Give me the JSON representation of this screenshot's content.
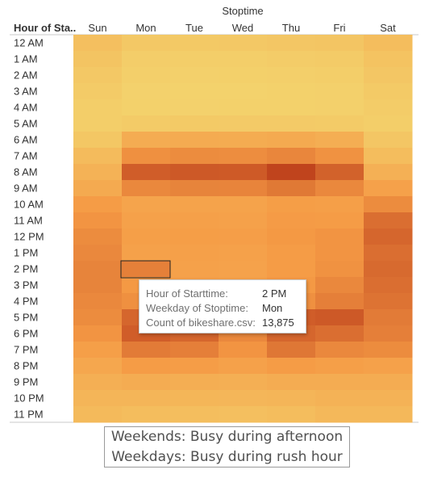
{
  "chart_data": {
    "type": "heatmap",
    "column_title": "Stoptime",
    "row_header": "Hour of Sta..",
    "columns": [
      "Sun",
      "Mon",
      "Tue",
      "Wed",
      "Thu",
      "Fri",
      "Sat"
    ],
    "rows": [
      "12 AM",
      "1 AM",
      "2 AM",
      "3 AM",
      "4 AM",
      "5 AM",
      "6 AM",
      "7 AM",
      "8 AM",
      "9 AM",
      "10 AM",
      "11 AM",
      "12 PM",
      "1 PM",
      "2 PM",
      "3 PM",
      "4 PM",
      "5 PM",
      "6 PM",
      "7 PM",
      "8 PM",
      "9 PM",
      "10 PM",
      "11 PM"
    ],
    "values": [
      [
        4200,
        2600,
        2400,
        2500,
        2800,
        3000,
        4500
      ],
      [
        3200,
        1600,
        1400,
        1500,
        1700,
        1900,
        3500
      ],
      [
        2600,
        1200,
        1000,
        1100,
        1300,
        1400,
        2900
      ],
      [
        1900,
        800,
        700,
        750,
        900,
        1000,
        2200
      ],
      [
        1500,
        900,
        800,
        850,
        950,
        1000,
        1700
      ],
      [
        1400,
        2000,
        2200,
        2100,
        2100,
        2000,
        1500
      ],
      [
        2700,
        7500,
        7700,
        7600,
        7900,
        7300,
        2800
      ],
      [
        4800,
        12000,
        12500,
        12400,
        13200,
        11800,
        4500
      ],
      [
        6500,
        18000,
        18500,
        18400,
        21000,
        17500,
        6800
      ],
      [
        8000,
        13000,
        13500,
        13400,
        14800,
        13000,
        9500
      ],
      [
        10500,
        9000,
        9300,
        9200,
        10200,
        10000,
        12500
      ],
      [
        11500,
        9500,
        9700,
        9600,
        10600,
        10500,
        16000
      ],
      [
        12500,
        10000,
        10200,
        10100,
        11000,
        11500,
        17000
      ],
      [
        13000,
        9500,
        9700,
        9600,
        10500,
        11500,
        16000
      ],
      [
        13500,
        13875,
        9500,
        9400,
        10500,
        11800,
        16500
      ],
      [
        13500,
        11000,
        10000,
        9800,
        11000,
        13000,
        16000
      ],
      [
        13000,
        12000,
        11000,
        10500,
        12000,
        14000,
        15500
      ],
      [
        12500,
        17000,
        16000,
        12000,
        18000,
        18500,
        14500
      ],
      [
        11500,
        18000,
        17000,
        13000,
        17000,
        16000,
        14000
      ],
      [
        10000,
        14500,
        14000,
        11500,
        15000,
        13000,
        12500
      ],
      [
        8500,
        10500,
        10300,
        9500,
        10500,
        10000,
        9500
      ],
      [
        7000,
        7500,
        7300,
        7000,
        7500,
        7500,
        7500
      ],
      [
        6000,
        6000,
        5800,
        5700,
        6000,
        6500,
        6500
      ],
      [
        5000,
        4500,
        4300,
        4200,
        4500,
        5500,
        5500
      ]
    ],
    "color_scale": {
      "low": "#f3d26c",
      "mid": "#f59a45",
      "high": "#c0441d"
    },
    "legend": "none",
    "grid": false
  },
  "highlight": {
    "row": "2 PM",
    "column": "Mon"
  },
  "tooltip": {
    "rows": [
      {
        "key": "Hour of Starttime:",
        "value": "2 PM"
      },
      {
        "key": "Weekday of Stoptime:",
        "value": "Mon"
      },
      {
        "key": "Count of bikeshare.csv:",
        "value": "13,875"
      }
    ]
  },
  "caption": {
    "line1": "Weekends: Busy during afternoon",
    "line2": "Weekdays: Busy during rush hour"
  }
}
